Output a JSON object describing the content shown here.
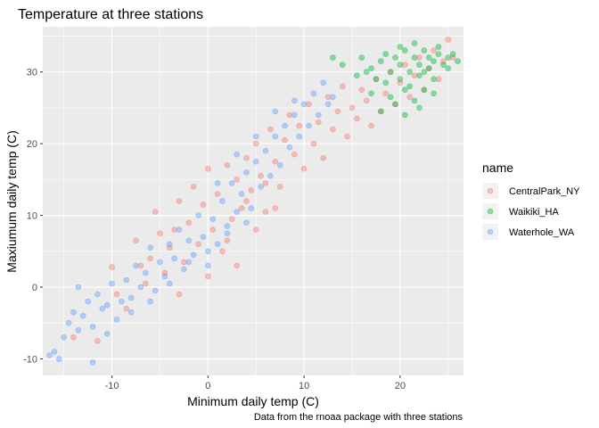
{
  "chart_data": {
    "type": "scatter",
    "title": "Temperature at three stations",
    "xlabel": "Minimum daily temp (C)",
    "ylabel": "Maxiumum daily temp (C)",
    "caption": "Data from the rnoaa package with three stations",
    "xlim": [
      -17.2,
      26.6
    ],
    "ylim": [
      -12.3,
      36.3
    ],
    "x_ticks": [
      -10,
      0,
      10,
      20
    ],
    "y_ticks": [
      -10,
      0,
      10,
      20,
      30
    ],
    "grid": true,
    "legend": {
      "title": "name",
      "position": "right"
    },
    "series": [
      {
        "name": "CentralPark_NY",
        "color": "#F8766D",
        "points": [
          [
            -14.0,
            -7.0
          ],
          [
            -11.5,
            -7.5
          ],
          [
            -10.0,
            2.8
          ],
          [
            -9.5,
            -1.0
          ],
          [
            -8.5,
            -3.0
          ],
          [
            -7.5,
            6.5
          ],
          [
            -7.0,
            3.0
          ],
          [
            -6.5,
            0.5
          ],
          [
            -6.0,
            4.0
          ],
          [
            -5.5,
            10.5
          ],
          [
            -5.0,
            7.5
          ],
          [
            -4.5,
            2.0
          ],
          [
            -4.0,
            5.5
          ],
          [
            -3.5,
            8.0
          ],
          [
            -3.0,
            12.0
          ],
          [
            -2.5,
            3.5
          ],
          [
            -2.0,
            9.0
          ],
          [
            -1.5,
            14.0
          ],
          [
            -1.0,
            6.0
          ],
          [
            -0.5,
            11.5
          ],
          [
            0.0,
            16.5
          ],
          [
            0.5,
            8.0
          ],
          [
            1.0,
            13.0
          ],
          [
            1.5,
            5.0
          ],
          [
            2.0,
            17.0
          ],
          [
            2.5,
            9.5
          ],
          [
            3.0,
            15.0
          ],
          [
            3.5,
            11.0
          ],
          [
            4.0,
            18.0
          ],
          [
            4.5,
            13.5
          ],
          [
            5.0,
            20.0
          ],
          [
            5.5,
            15.5
          ],
          [
            6.0,
            10.5
          ],
          [
            6.5,
            22.0
          ],
          [
            7.0,
            17.5
          ],
          [
            7.5,
            14.0
          ],
          [
            8.0,
            20.5
          ],
          [
            8.5,
            24.0
          ],
          [
            9.0,
            18.5
          ],
          [
            9.5,
            22.5
          ],
          [
            10.0,
            16.5
          ],
          [
            10.5,
            25.5
          ],
          [
            11.0,
            20.0
          ],
          [
            11.5,
            23.0
          ],
          [
            12.0,
            18.0
          ],
          [
            12.5,
            26.5
          ],
          [
            13.0,
            22.0
          ],
          [
            13.5,
            24.5
          ],
          [
            14.0,
            28.0
          ],
          [
            14.5,
            21.0
          ],
          [
            15.0,
            25.0
          ],
          [
            15.5,
            23.5
          ],
          [
            16.0,
            27.5
          ],
          [
            16.5,
            26.0
          ],
          [
            17.0,
            22.5
          ],
          [
            17.5,
            29.0
          ],
          [
            18.0,
            24.5
          ],
          [
            18.5,
            27.0
          ],
          [
            19.0,
            30.0
          ],
          [
            19.5,
            25.5
          ],
          [
            20.0,
            28.5
          ],
          [
            20.5,
            31.0
          ],
          [
            21.0,
            26.5
          ],
          [
            21.5,
            29.5
          ],
          [
            22.0,
            32.0
          ],
          [
            22.5,
            27.5
          ],
          [
            23.0,
            30.5
          ],
          [
            23.5,
            33.0
          ],
          [
            24.0,
            29.0
          ],
          [
            24.5,
            31.5
          ],
          [
            25.0,
            34.5
          ],
          [
            25.5,
            32.0
          ],
          [
            3.0,
            3.0
          ],
          [
            5.0,
            8.0
          ],
          [
            7.0,
            11.0
          ],
          [
            -3.0,
            -1.0
          ],
          [
            0.0,
            1.5
          ],
          [
            2.0,
            6.5
          ],
          [
            4.0,
            12.0
          ],
          [
            6.0,
            14.5
          ]
        ]
      },
      {
        "name": "Waikiki_HA",
        "color": "#00BA38",
        "points": [
          [
            13.0,
            32.0
          ],
          [
            14.0,
            31.0
          ],
          [
            15.5,
            29.5
          ],
          [
            16.0,
            32.0
          ],
          [
            16.5,
            30.0
          ],
          [
            17.0,
            27.0
          ],
          [
            17.5,
            29.0
          ],
          [
            18.0,
            31.5
          ],
          [
            18.5,
            28.5
          ],
          [
            19.0,
            30.0
          ],
          [
            19.0,
            26.5
          ],
          [
            19.5,
            32.0
          ],
          [
            20.0,
            29.0
          ],
          [
            20.0,
            31.0
          ],
          [
            20.5,
            27.5
          ],
          [
            20.5,
            33.0
          ],
          [
            21.0,
            30.0
          ],
          [
            21.0,
            28.0
          ],
          [
            21.5,
            32.0
          ],
          [
            21.5,
            26.0
          ],
          [
            22.0,
            31.0
          ],
          [
            22.0,
            29.5
          ],
          [
            22.5,
            33.0
          ],
          [
            22.5,
            27.5
          ],
          [
            23.0,
            32.0
          ],
          [
            23.0,
            30.5
          ],
          [
            23.5,
            31.5
          ],
          [
            23.5,
            29.0
          ],
          [
            24.0,
            32.5
          ],
          [
            24.0,
            33.5
          ],
          [
            24.5,
            31.0
          ],
          [
            25.0,
            32.0
          ],
          [
            25.0,
            30.5
          ],
          [
            25.5,
            32.5
          ],
          [
            26.0,
            31.5
          ],
          [
            18.0,
            24.5
          ],
          [
            19.5,
            25.5
          ],
          [
            20.5,
            24.0
          ],
          [
            22.0,
            25.0
          ],
          [
            23.5,
            27.0
          ],
          [
            17.0,
            30.5
          ],
          [
            18.5,
            32.5
          ],
          [
            20.0,
            33.5
          ],
          [
            21.5,
            34.0
          ],
          [
            22.5,
            30.0
          ]
        ]
      },
      {
        "name": "Waterhole_WA",
        "color": "#619CFF",
        "points": [
          [
            -16.5,
            -9.5
          ],
          [
            -16.0,
            -9.0
          ],
          [
            -15.5,
            -10.0
          ],
          [
            -15.0,
            -7.0
          ],
          [
            -14.5,
            -5.0
          ],
          [
            -14.0,
            -3.5
          ],
          [
            -13.5,
            -6.0
          ],
          [
            -13.0,
            -4.0
          ],
          [
            -12.5,
            -2.0
          ],
          [
            -12.0,
            -5.5
          ],
          [
            -11.5,
            -1.0
          ],
          [
            -11.0,
            -3.0
          ],
          [
            -10.5,
            -6.5
          ],
          [
            -10.0,
            0.5
          ],
          [
            -9.5,
            -4.5
          ],
          [
            -9.0,
            -2.0
          ],
          [
            -8.5,
            1.0
          ],
          [
            -8.0,
            -1.5
          ],
          [
            -7.5,
            3.0
          ],
          [
            -7.0,
            0.0
          ],
          [
            -6.5,
            2.0
          ],
          [
            -6.0,
            5.5
          ],
          [
            -5.5,
            -0.5
          ],
          [
            -5.0,
            3.5
          ],
          [
            -4.5,
            1.5
          ],
          [
            -4.0,
            6.0
          ],
          [
            -3.5,
            4.0
          ],
          [
            -3.0,
            8.0
          ],
          [
            -2.5,
            2.5
          ],
          [
            -2.0,
            6.5
          ],
          [
            -1.5,
            4.5
          ],
          [
            -1.0,
            10.0
          ],
          [
            -0.5,
            7.0
          ],
          [
            0.0,
            3.0
          ],
          [
            0.5,
            9.5
          ],
          [
            1.0,
            6.0
          ],
          [
            1.5,
            12.0
          ],
          [
            2.0,
            8.5
          ],
          [
            2.5,
            14.5
          ],
          [
            3.0,
            10.5
          ],
          [
            3.5,
            13.0
          ],
          [
            4.0,
            16.0
          ],
          [
            4.5,
            11.0
          ],
          [
            5.0,
            17.5
          ],
          [
            5.5,
            14.0
          ],
          [
            6.0,
            19.0
          ],
          [
            6.5,
            15.5
          ],
          [
            7.0,
            21.0
          ],
          [
            7.5,
            17.0
          ],
          [
            8.0,
            22.5
          ],
          [
            8.5,
            19.5
          ],
          [
            9.0,
            24.0
          ],
          [
            9.5,
            21.0
          ],
          [
            10.0,
            25.5
          ],
          [
            10.5,
            22.5
          ],
          [
            11.0,
            27.0
          ],
          [
            11.5,
            24.0
          ],
          [
            12.0,
            28.5
          ],
          [
            12.5,
            25.5
          ],
          [
            13.0,
            26.5
          ],
          [
            -8.0,
            -3.5
          ],
          [
            -6.0,
            -2.0
          ],
          [
            -4.0,
            0.5
          ],
          [
            -2.0,
            3.5
          ],
          [
            0.0,
            5.0
          ],
          [
            2.0,
            7.5
          ],
          [
            4.0,
            9.0
          ],
          [
            -12.0,
            -10.5
          ],
          [
            -13.5,
            0.0
          ],
          [
            -10.5,
            -2.5
          ],
          [
            1.0,
            14.5
          ],
          [
            3.0,
            18.5
          ],
          [
            5.0,
            21.0
          ],
          [
            7.0,
            24.5
          ],
          [
            9.0,
            26.0
          ]
        ]
      }
    ]
  }
}
